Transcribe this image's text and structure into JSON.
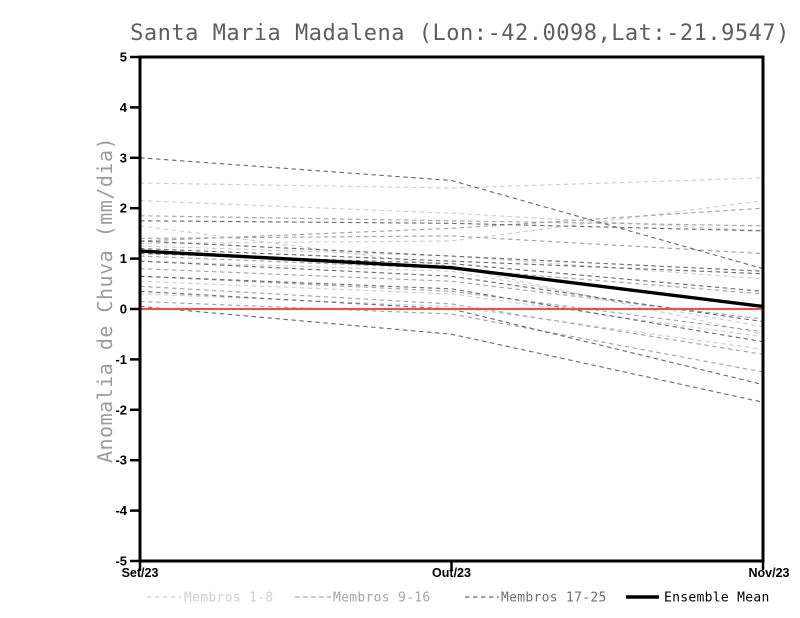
{
  "chart_data": {
    "type": "line",
    "title": "Santa Maria Madalena (Lon:-42.0098,Lat:-21.9547)",
    "ylabel": "Anomalia de Chuva (mm/dia)",
    "xlabel": "",
    "x_categories": [
      "Set/23",
      "Out/23",
      "Nov/23"
    ],
    "ylim": [
      -5,
      5
    ],
    "ytick_step": 1,
    "ytick_labels": [
      "5",
      "4",
      "3",
      "2",
      "1",
      "0",
      "-1",
      "-2",
      "-3",
      "-4",
      "-5"
    ],
    "grid": false,
    "legend_position": "bottom",
    "colors": {
      "frame": "#000000",
      "zero_line": "#f24c4c",
      "title": "#5e5e5e",
      "ylabel": "#9c9c9c",
      "members_1_8": "#cfcfcf",
      "members_9_16": "#a6a6a6",
      "members_17_25": "#6f6f6f",
      "ensemble_mean": "#000000"
    },
    "groups": [
      {
        "key": "membros_1_8",
        "label": "Membros 1-8",
        "color": "#cfcfcf",
        "style": "dashed"
      },
      {
        "key": "membros_9_16",
        "label": "Membros 9-16",
        "color": "#a6a6a6",
        "style": "dashed"
      },
      {
        "key": "membros_17_25",
        "label": "Membros 17-25",
        "color": "#6f6f6f",
        "style": "dashed"
      }
    ],
    "members": {
      "membros_1_8": [
        [
          2.5,
          2.4,
          2.6
        ],
        [
          2.15,
          1.9,
          1.55
        ],
        [
          1.3,
          1.35,
          2.15
        ],
        [
          1.65,
          0.85,
          -0.5
        ],
        [
          1.25,
          1.05,
          0.6
        ],
        [
          0.95,
          0.75,
          -0.35
        ],
        [
          0.55,
          0.3,
          -0.55
        ],
        [
          0.3,
          0.05,
          -0.8
        ]
      ],
      "membros_9_16": [
        [
          1.85,
          1.75,
          1.65
        ],
        [
          1.4,
          1.45,
          1.1
        ],
        [
          1.35,
          1.6,
          2.0
        ],
        [
          1.05,
          0.8,
          0.3
        ],
        [
          0.8,
          0.55,
          -0.2
        ],
        [
          0.65,
          0.35,
          -0.45
        ],
        [
          0.45,
          0.1,
          -0.9
        ],
        [
          0.15,
          -0.1,
          -1.25
        ]
      ],
      "membros_17_25": [
        [
          3.0,
          2.55,
          0.8
        ],
        [
          1.75,
          1.7,
          1.55
        ],
        [
          1.2,
          0.95,
          0.7
        ],
        [
          1.35,
          1.05,
          0.75
        ],
        [
          1.1,
          0.9,
          0.35
        ],
        [
          0.95,
          0.65,
          -0.25
        ],
        [
          0.65,
          0.4,
          -0.65
        ],
        [
          0.35,
          0.0,
          -1.5
        ],
        [
          0.05,
          -0.5,
          -1.85
        ]
      ]
    },
    "ensemble_mean": {
      "label": "Ensemble Mean",
      "color": "#000000",
      "values": [
        1.15,
        0.82,
        0.05
      ]
    },
    "zero_line": {
      "y": 0,
      "color": "#f24c4c"
    },
    "legend": [
      {
        "label": "Membros 1-8",
        "color": "#cfcfcf",
        "style": "dashed"
      },
      {
        "label": "Membros 9-16",
        "color": "#a6a6a6",
        "style": "dashed"
      },
      {
        "label": "Membros 17-25",
        "color": "#6f6f6f",
        "style": "dashed"
      },
      {
        "label": "Ensemble Mean",
        "color": "#000000",
        "style": "solid"
      }
    ]
  }
}
